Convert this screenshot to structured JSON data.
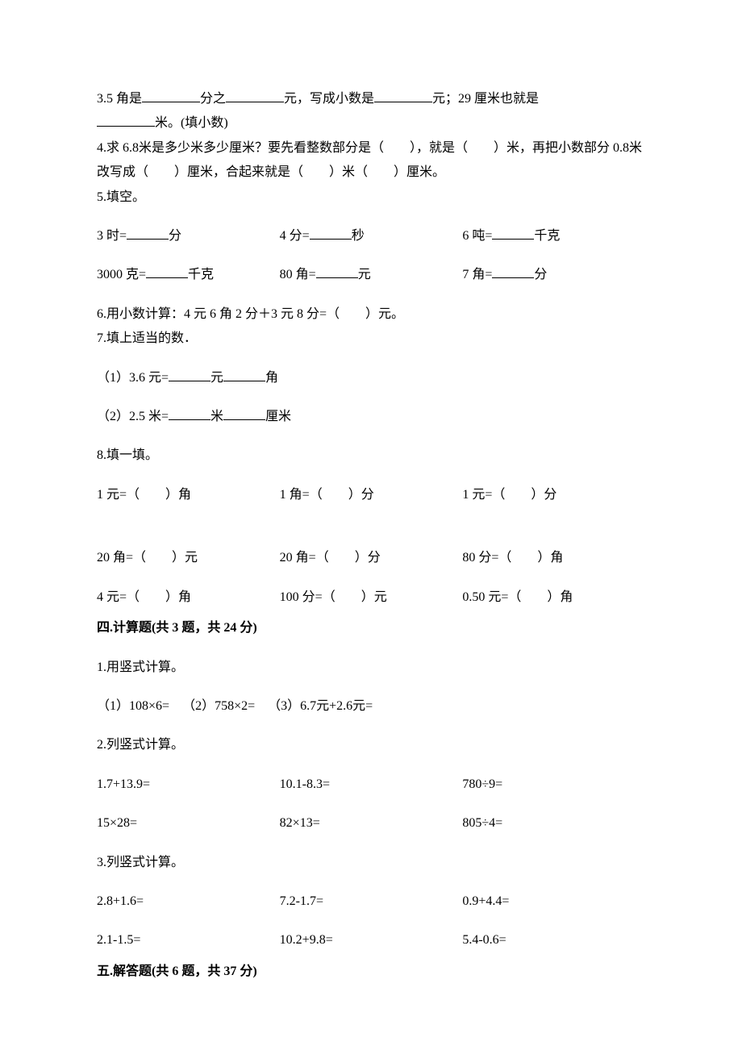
{
  "q3": {
    "t1": "3.5 角是",
    "t2": "分之",
    "t3": "元，写成小数是",
    "t4": "元；29 厘米也就是",
    "t5": "米。(填小数)"
  },
  "q4": {
    "t1": "4.求 6.8米是多少米多少厘米？要先看整数部分是（　　），就是（　　）米，再把小数部分 0.8米改写成（　　）厘米，合起来就是（　　）米（　　）厘米。"
  },
  "q5": {
    "title": "5.填空。",
    "r1a": "3 时=",
    "r1a_u": "分",
    "r1b": "4 分=",
    "r1b_u": "秒",
    "r1c": "6 吨=",
    "r1c_u": "千克",
    "r2a": "3000 克=",
    "r2a_u": "千克",
    "r2b": "80 角=",
    "r2b_u": "元",
    "r2c": "7 角=",
    "r2c_u": "分"
  },
  "q6": "6.用小数计算：4 元 6 角 2 分＋3 元 8 分=（　　）元。",
  "q7": {
    "title": "7.填上适当的数．",
    "p1a": "（1）3.6 元=",
    "p1b": "元",
    "p1c": "角",
    "p2a": "（2）2.5 米=",
    "p2b": "米",
    "p2c": "厘米"
  },
  "q8": {
    "title": "8.填一填。",
    "r1a": "1 元=（　　）角",
    "r1b": "1 角=（　　）分",
    "r1c": "1 元=（　　）分",
    "r2a": "20 角=（　　）元",
    "r2b": "20 角=（　　）分",
    "r2c": "80 分=（　　）角",
    "r3a": "4 元=（　　）角",
    "r3b": "100 分=（　　）元",
    "r3c": "0.50 元=（　　）角"
  },
  "sec4": {
    "title": "四.计算题(共 3 题，共 24 分)",
    "q1": "1.用竖式计算。",
    "q1a": "（1）108×6=",
    "q1b": "（2）758×2=",
    "q1c": "（3）6.7元+2.6元=",
    "q2": "2.列竖式计算。",
    "q2r1a": "1.7+13.9=",
    "q2r1b": "10.1-8.3=",
    "q2r1c": "780÷9=",
    "q2r2a": "15×28=",
    "q2r2b": "82×13=",
    "q2r2c": "805÷4=",
    "q3": "3.列竖式计算。",
    "q3r1a": "2.8+1.6=",
    "q3r1b": "7.2-1.7=",
    "q3r1c": "0.9+4.4=",
    "q3r2a": "2.1-1.5=",
    "q3r2b": "10.2+9.8=",
    "q3r2c": "5.4-0.6="
  },
  "sec5": {
    "title": "五.解答题(共 6 题，共 37 分)"
  }
}
